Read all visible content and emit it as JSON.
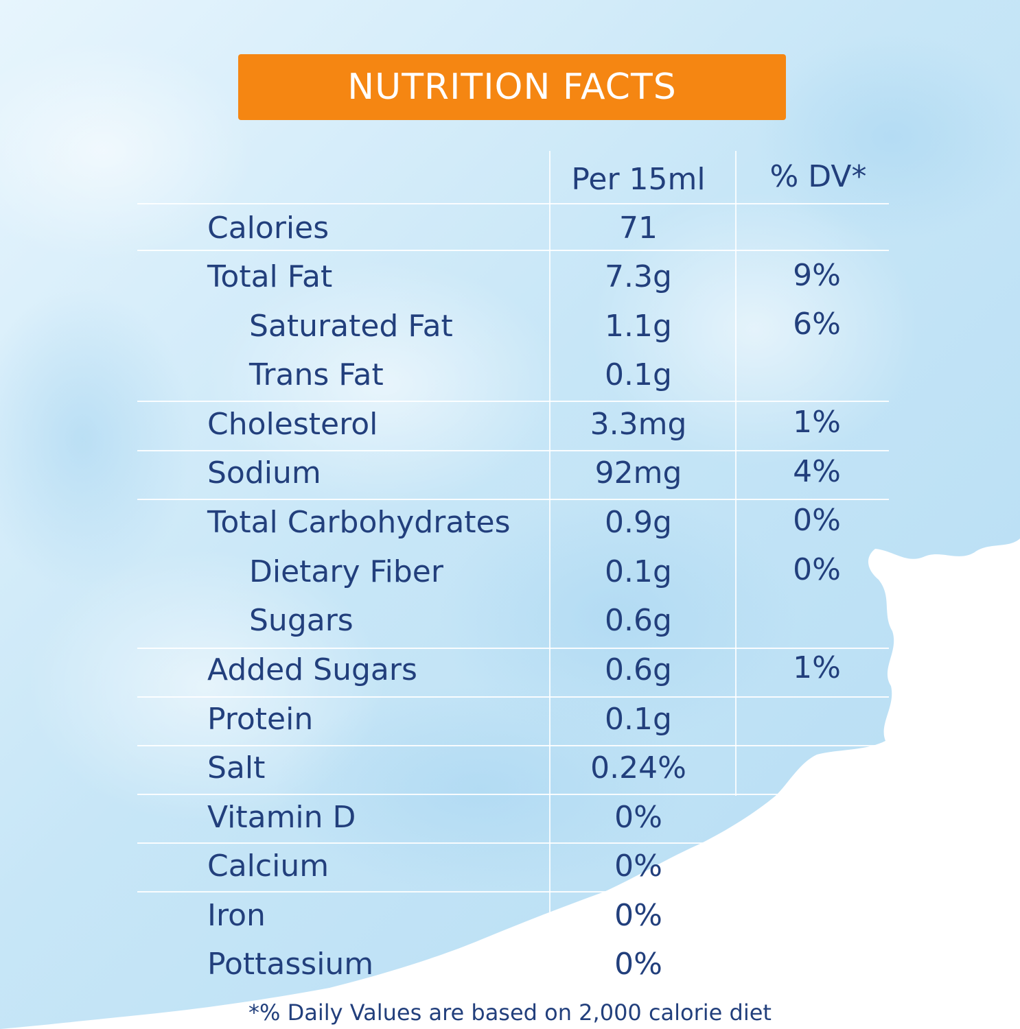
{
  "header": {
    "title": "NUTRITION FACTS"
  },
  "columns": {
    "per": "Per 15ml",
    "dv": "% DV*"
  },
  "rows": [
    {
      "name": "Calories",
      "value": "71",
      "dv": "",
      "indent": false
    },
    {
      "name": "Total Fat",
      "value": "7.3g",
      "dv": "9%",
      "indent": false
    },
    {
      "name": "Saturated Fat",
      "value": "1.1g",
      "dv": "6%",
      "indent": true
    },
    {
      "name": "Trans Fat",
      "value": "0.1g",
      "dv": "",
      "indent": true
    },
    {
      "name": "Cholesterol",
      "value": "3.3mg",
      "dv": "1%",
      "indent": false
    },
    {
      "name": "Sodium",
      "value": "92mg",
      "dv": "4%",
      "indent": false
    },
    {
      "name": "Total Carbohydrates",
      "value": "0.9g",
      "dv": "0%",
      "indent": false
    },
    {
      "name": "Dietary Fiber",
      "value": "0.1g",
      "dv": "0%",
      "indent": true
    },
    {
      "name": "Sugars",
      "value": "0.6g",
      "dv": "",
      "indent": true
    },
    {
      "name": "Added Sugars",
      "value": "0.6g",
      "dv": "1%",
      "indent": false
    },
    {
      "name": "Protein",
      "value": "0.1g",
      "dv": "",
      "indent": false
    },
    {
      "name": "Salt",
      "value": "0.24%",
      "dv": "",
      "indent": false
    },
    {
      "name": "Vitamin D",
      "value": "0%",
      "dv": "",
      "indent": false
    },
    {
      "name": "Calcium",
      "value": "0%",
      "dv": "",
      "indent": false
    },
    {
      "name": "Iron",
      "value": "0%",
      "dv": "",
      "indent": false
    },
    {
      "name": "Pottassium",
      "value": "0%",
      "dv": "",
      "indent": false
    }
  ],
  "footnote": "*% Daily Values are based on 2,000 calorie diet",
  "colors": {
    "banner": "#f58612",
    "text": "#223f7c",
    "background": "#c9e7f7"
  }
}
